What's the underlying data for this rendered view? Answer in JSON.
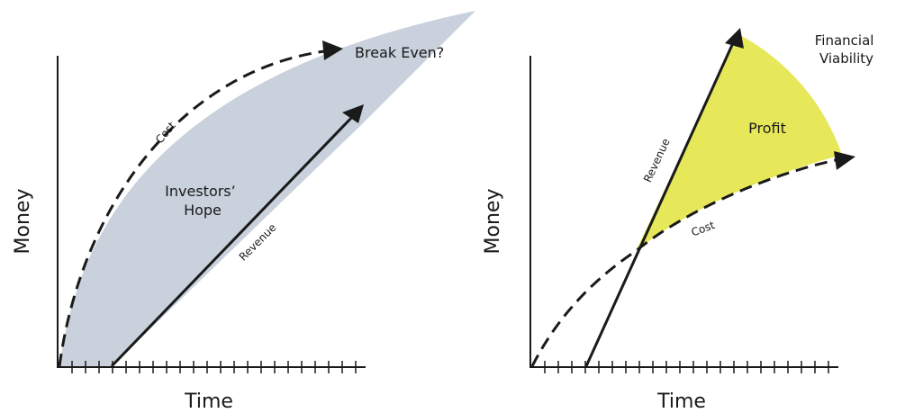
{
  "colors": {
    "hope_fill": "#c8d1dc",
    "profit_fill": "#e6e85a",
    "ink": "#1a1a1a",
    "background": "#ffffff"
  },
  "left_panel": {
    "x_axis_label": "Time",
    "y_axis_label": "Money",
    "cost_label": "Cost",
    "revenue_label": "Revenue",
    "region_label_line1": "Investors’",
    "region_label_line2": "Hope",
    "break_even_label": "Break Even?"
  },
  "right_panel": {
    "x_axis_label": "Time",
    "y_axis_label": "Money",
    "cost_label": "Cost",
    "revenue_label": "Revenue",
    "region_label": "Profit",
    "viability_line1": "Financial",
    "viability_line2": "Viability"
  }
}
